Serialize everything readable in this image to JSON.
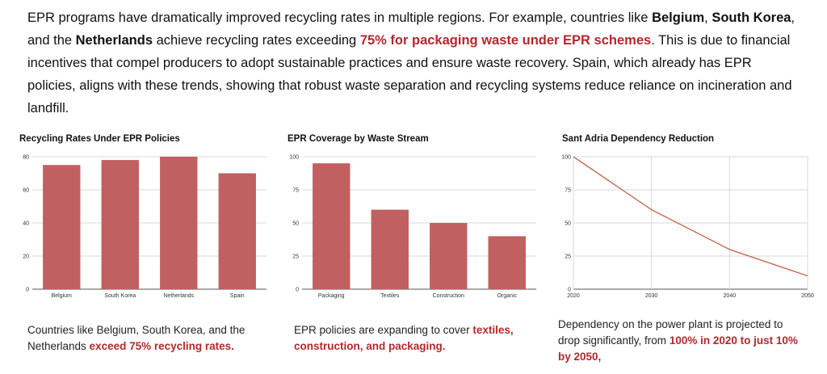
{
  "intro": {
    "p1": "EPR programs have dramatically improved recycling rates in multiple regions. For example, countries like ",
    "c1": "Belgium",
    "s1": ", ",
    "c2": "South Korea",
    "s2": ",",
    "s3": "and the ",
    "c3": "Netherlands",
    "s4": " achieve recycling rates exceeding ",
    "hl": "75% for packaging waste under EPR schemes",
    "p2": ". This is due to financial incentives that compel producers to adopt sustainable practices and ensure waste recovery. Spain, which already has EPR policies, aligns with these trends, showing that robust waste separation and recycling systems reduce reliance on incineration and landfill."
  },
  "colors": {
    "bar": "#c06060",
    "line": "#c96a5a",
    "highlight": "#b3282d",
    "grid": "#d9d9d9",
    "axis": "#555555"
  },
  "chart_data": [
    {
      "type": "bar",
      "title": "Recycling Rates Under EPR Policies",
      "categories": [
        "Belgium",
        "South Korea",
        "Netherlands",
        "Spain"
      ],
      "values": [
        75,
        78,
        80,
        70
      ],
      "ylim": [
        0,
        80
      ],
      "yticks": [
        0,
        20,
        40,
        60,
        80
      ],
      "grid": true
    },
    {
      "type": "bar",
      "title": "EPR Coverage by Waste Stream",
      "categories": [
        "Packaging",
        "Textiles",
        "Construction",
        "Organic"
      ],
      "values": [
        95,
        60,
        50,
        40
      ],
      "ylim": [
        0,
        100
      ],
      "yticks": [
        0,
        25,
        50,
        75,
        100
      ],
      "grid": true
    },
    {
      "type": "line",
      "title": "Sant Adria Dependency Reduction",
      "x": [
        2020,
        2030,
        2040,
        2050
      ],
      "values": [
        100,
        60,
        30,
        10
      ],
      "xlim": [
        2020,
        2050
      ],
      "ylim": [
        0,
        100
      ],
      "xticks": [
        2020,
        2030,
        2040,
        2050
      ],
      "yticks": [
        0,
        25,
        50,
        75,
        100
      ],
      "grid": true
    }
  ],
  "captions": [
    {
      "text": "Countries like Belgium, South Korea, and the Netherlands ",
      "hl": "exceed 75% recycling rates."
    },
    {
      "text": "EPR policies are expanding to cover ",
      "hl": "textiles, construction, and packaging."
    },
    {
      "text": "Dependency on the power plant is projected to drop significantly, from ",
      "hl": "100% in 2020 to just 10% by 2050,"
    }
  ]
}
